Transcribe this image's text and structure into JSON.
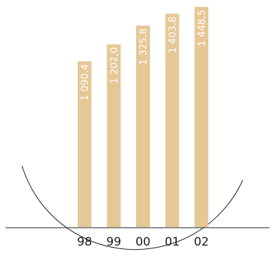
{
  "chart_data": {
    "type": "bar",
    "categories": [
      "98",
      "99",
      "00",
      "01",
      "02"
    ],
    "values": [
      1090.4,
      1202.0,
      1325.8,
      1403.8,
      1448.5
    ],
    "data_labels": [
      "1 090,4",
      "1 202,0",
      "1 325,8",
      "1 403,8",
      "1 448,5"
    ],
    "title": "",
    "xlabel": "",
    "ylabel": "",
    "ylim": [
      0,
      1448.5
    ],
    "grid": false,
    "legend": "none",
    "colors": {
      "bar": "#e6c796",
      "label": "#ffffff",
      "axis": "#1a1a1a"
    }
  }
}
